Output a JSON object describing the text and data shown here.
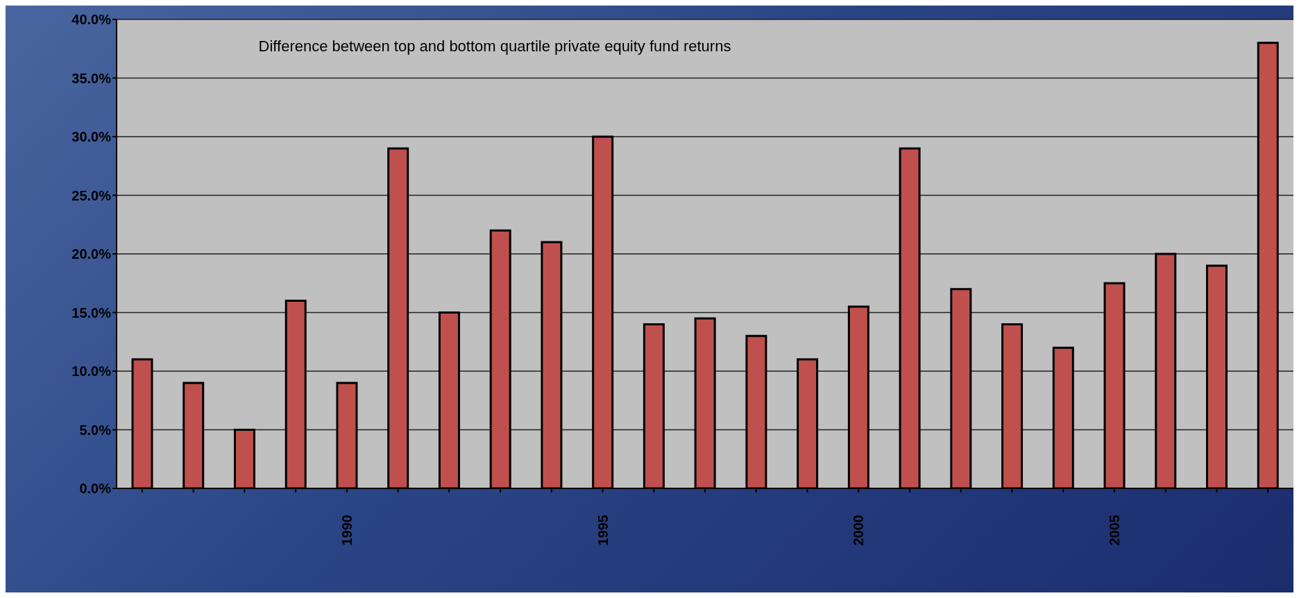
{
  "chart_data": {
    "type": "bar",
    "title": "Difference between top and bottom quartile  private equity fund returns",
    "categories": [
      null,
      null,
      null,
      null,
      "1990",
      null,
      null,
      null,
      null,
      "1995",
      null,
      null,
      null,
      null,
      "2000",
      null,
      null,
      null,
      null,
      "2005",
      null,
      null,
      null
    ],
    "values": [
      11,
      9,
      5,
      16,
      9,
      29,
      15,
      22,
      21,
      30,
      14,
      14.5,
      13,
      11,
      15.5,
      29,
      17,
      14,
      12,
      17.5,
      20,
      19,
      38
    ],
    "color": "#c0504d",
    "ylim": [
      0,
      40
    ],
    "yticks": [
      {
        "value": 0,
        "label": "0.0%"
      },
      {
        "value": 5,
        "label": "5.0%"
      },
      {
        "value": 10,
        "label": "10.0%"
      },
      {
        "value": 15,
        "label": "15.0%"
      },
      {
        "value": 20,
        "label": "20.0%"
      },
      {
        "value": 25,
        "label": "25.0%"
      },
      {
        "value": 30,
        "label": "30.0%"
      },
      {
        "value": 35,
        "label": "35.0%"
      },
      {
        "value": 40,
        "label": "40.0%"
      }
    ],
    "grid": "y"
  }
}
